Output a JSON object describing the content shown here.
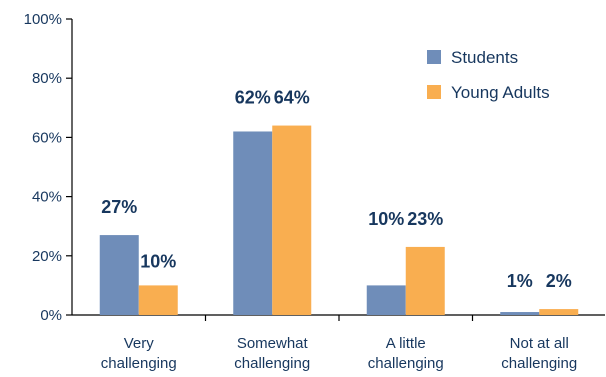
{
  "chart_data": {
    "type": "bar",
    "categories": [
      [
        "Very",
        "challenging"
      ],
      [
        "Somewhat",
        "challenging"
      ],
      [
        "A little",
        "challenging"
      ],
      [
        "Not at all",
        "challenging"
      ]
    ],
    "series": [
      {
        "name": "Students",
        "color": "#6f8db9",
        "values": [
          27,
          62,
          10,
          1
        ],
        "labels": [
          "27%",
          "62%",
          "10%",
          "1%"
        ]
      },
      {
        "name": "Young Adults",
        "color": "#f9ae50",
        "values": [
          10,
          64,
          23,
          2
        ],
        "labels": [
          "10%",
          "64%",
          "23%",
          "2%"
        ]
      }
    ],
    "yticks": [
      "0%",
      "20%",
      "40%",
      "60%",
      "80%",
      "100%"
    ],
    "ylim": [
      0,
      100
    ],
    "grid": false,
    "legend_position": "top-right"
  }
}
